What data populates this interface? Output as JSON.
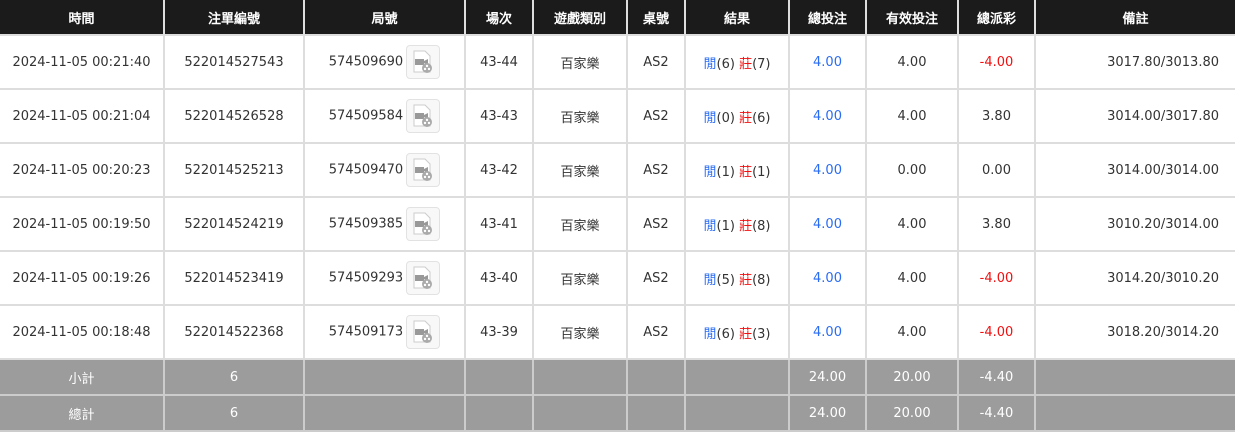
{
  "headers": [
    "時間",
    "注單編號",
    "局號",
    "場次",
    "遊戲類別",
    "桌號",
    "結果",
    "總投注",
    "有效投注",
    "總派彩",
    "備註"
  ],
  "colors": {
    "player": "#2a6cf5",
    "banker": "#f01010",
    "negative": "#f01010",
    "total_bet": "#2a6cf5"
  },
  "rows": [
    {
      "time": "2024-11-05 00:21:40",
      "bet_id": "522014527543",
      "round": "574509690",
      "shoe": "43-44",
      "game": "百家樂",
      "table": "AS2",
      "player_label": "閒",
      "player_score": "(6)",
      "banker_label": "莊",
      "banker_score": "(7)",
      "total_bet": "4.00",
      "valid_bet": "4.00",
      "payout": "-4.00",
      "payout_negative": true,
      "note": "3017.80/3013.80"
    },
    {
      "time": "2024-11-05 00:21:04",
      "bet_id": "522014526528",
      "round": "574509584",
      "shoe": "43-43",
      "game": "百家樂",
      "table": "AS2",
      "player_label": "閒",
      "player_score": "(0)",
      "banker_label": "莊",
      "banker_score": "(6)",
      "total_bet": "4.00",
      "valid_bet": "4.00",
      "payout": "3.80",
      "payout_negative": false,
      "note": "3014.00/3017.80"
    },
    {
      "time": "2024-11-05 00:20:23",
      "bet_id": "522014525213",
      "round": "574509470",
      "shoe": "43-42",
      "game": "百家樂",
      "table": "AS2",
      "player_label": "閒",
      "player_score": "(1)",
      "banker_label": "莊",
      "banker_score": "(1)",
      "total_bet": "4.00",
      "valid_bet": "0.00",
      "payout": "0.00",
      "payout_negative": false,
      "note": "3014.00/3014.00"
    },
    {
      "time": "2024-11-05 00:19:50",
      "bet_id": "522014524219",
      "round": "574509385",
      "shoe": "43-41",
      "game": "百家樂",
      "table": "AS2",
      "player_label": "閒",
      "player_score": "(1)",
      "banker_label": "莊",
      "banker_score": "(8)",
      "total_bet": "4.00",
      "valid_bet": "4.00",
      "payout": "3.80",
      "payout_negative": false,
      "note": "3010.20/3014.00"
    },
    {
      "time": "2024-11-05 00:19:26",
      "bet_id": "522014523419",
      "round": "574509293",
      "shoe": "43-40",
      "game": "百家樂",
      "table": "AS2",
      "player_label": "閒",
      "player_score": "(5)",
      "banker_label": "莊",
      "banker_score": "(8)",
      "total_bet": "4.00",
      "valid_bet": "4.00",
      "payout": "-4.00",
      "payout_negative": true,
      "note": "3014.20/3010.20"
    },
    {
      "time": "2024-11-05 00:18:48",
      "bet_id": "522014522368",
      "round": "574509173",
      "shoe": "43-39",
      "game": "百家樂",
      "table": "AS2",
      "player_label": "閒",
      "player_score": "(6)",
      "banker_label": "莊",
      "banker_score": "(3)",
      "total_bet": "4.00",
      "valid_bet": "4.00",
      "payout": "-4.00",
      "payout_negative": true,
      "note": "3018.20/3014.20"
    }
  ],
  "subtotal": {
    "label": "小計",
    "count": "6",
    "total_bet": "24.00",
    "valid_bet": "20.00",
    "payout": "-4.40"
  },
  "grandtotal": {
    "label": "總計",
    "count": "6",
    "total_bet": "24.00",
    "valid_bet": "20.00",
    "payout": "-4.40"
  }
}
